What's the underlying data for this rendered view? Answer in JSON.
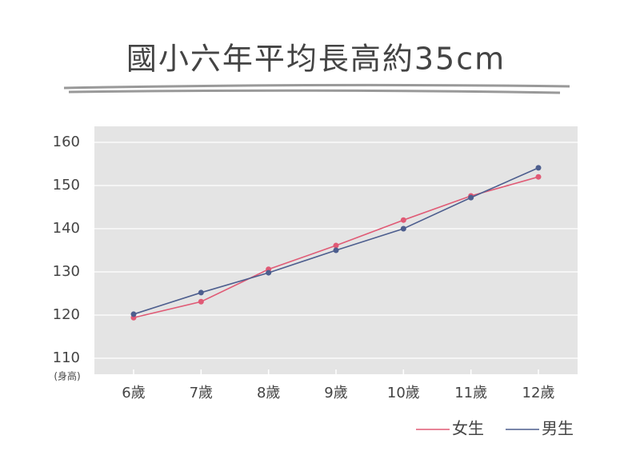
{
  "chart_data": {
    "type": "line",
    "title": "國小六年平均長高約35cm",
    "y_label": "(身高)",
    "categories": [
      "6歲",
      "7歲",
      "8歲",
      "9歲",
      "10歲",
      "11歲",
      "12歲"
    ],
    "series": [
      {
        "name": "女生",
        "color": "#e05a75",
        "values": [
          119.4,
          123.1,
          130.6,
          136.1,
          142.0,
          147.6,
          152.0
        ]
      },
      {
        "name": "男生",
        "color": "#4d5e8e",
        "values": [
          120.2,
          125.2,
          129.8,
          135.0,
          140.0,
          147.2,
          154.1
        ]
      }
    ],
    "ylim": [
      106.3,
      163.7
    ],
    "yticks": [
      110,
      120,
      130,
      140,
      150,
      160
    ],
    "grid": true,
    "legend": "bottom-right"
  }
}
